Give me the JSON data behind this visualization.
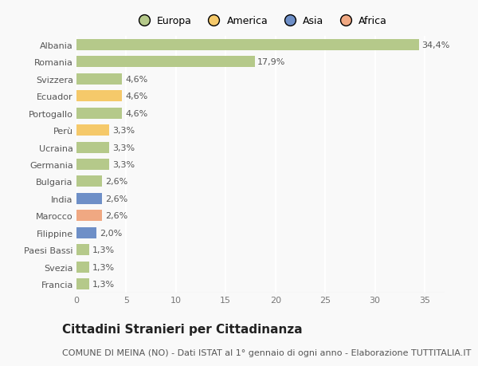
{
  "countries": [
    "Francia",
    "Svezia",
    "Paesi Bassi",
    "Filippine",
    "Marocco",
    "India",
    "Bulgaria",
    "Germania",
    "Ucraina",
    "Perù",
    "Portogallo",
    "Ecuador",
    "Svizzera",
    "Romania",
    "Albania"
  ],
  "values": [
    1.3,
    1.3,
    1.3,
    2.0,
    2.6,
    2.6,
    2.6,
    3.3,
    3.3,
    3.3,
    4.6,
    4.6,
    4.6,
    17.9,
    34.4
  ],
  "labels": [
    "1,3%",
    "1,3%",
    "1,3%",
    "2,0%",
    "2,6%",
    "2,6%",
    "2,6%",
    "3,3%",
    "3,3%",
    "3,3%",
    "4,6%",
    "4,6%",
    "4,6%",
    "17,9%",
    "34,4%"
  ],
  "continents": [
    "Europa",
    "Europa",
    "Europa",
    "Asia",
    "Africa",
    "Asia",
    "Europa",
    "Europa",
    "Europa",
    "America",
    "Europa",
    "America",
    "Europa",
    "Europa",
    "Europa"
  ],
  "continent_colors": {
    "Europa": "#b5c98a",
    "America": "#f5c96a",
    "Asia": "#6e8fc7",
    "Africa": "#f0a882"
  },
  "legend_items": [
    {
      "label": "Europa",
      "color": "#b5c98a"
    },
    {
      "label": "America",
      "color": "#f5c96a"
    },
    {
      "label": "Asia",
      "color": "#6e8fc7"
    },
    {
      "label": "Africa",
      "color": "#f0a882"
    }
  ],
  "title": "Cittadini Stranieri per Cittadinanza",
  "subtitle": "COMUNE DI MEINA (NO) - Dati ISTAT al 1° gennaio di ogni anno - Elaborazione TUTTITALIA.IT",
  "xlim": [
    0,
    37
  ],
  "xticks": [
    0,
    5,
    10,
    15,
    20,
    25,
    30,
    35
  ],
  "background_color": "#f9f9f9",
  "grid_color": "#ffffff",
  "bar_height": 0.65,
  "title_fontsize": 11,
  "subtitle_fontsize": 8,
  "tick_fontsize": 8,
  "label_fontsize": 8,
  "legend_fontsize": 9
}
